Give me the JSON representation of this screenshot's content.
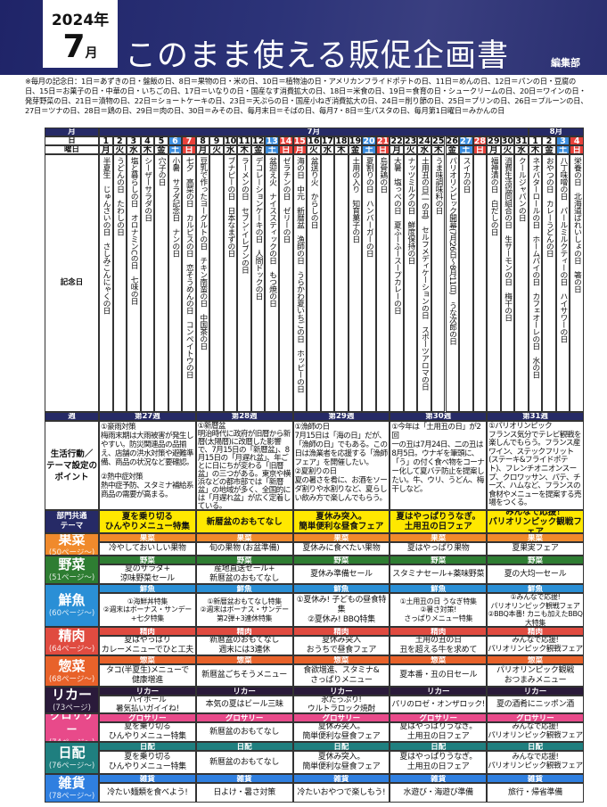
{
  "header": {
    "year": "2024年",
    "month": "7",
    "month_unit": "月",
    "title": "このまま使える販促企画書",
    "editor": "編集部"
  },
  "note": "※毎月の記念日：1日＝あずきの日・盤飯の日、8日＝果物の日・米の日、10日＝植物油の日・アメリカンフライドポテトの日、11日＝めんの日、12日＝パンの日・豆腐の日、15日＝お菓子の日・中華の日・いちごの日、17日＝いなりの日・国産なす消費拡大の日、18日＝米食の日、19日＝食育の日・シュークリームの日、20日＝ワインの日・発芽野菜の日、21日＝漬物の日、22日＝ショートケーキの日、23日＝天ぷらの日・国産小ねぎ消費拡大の日、24日＝削り節の日、25日＝プリンの日、26日＝プルーンの日、27日＝ツナの日、28日＝鶏の日、29日＝肉の日、30日＝みその日、毎月末日＝そばの日、毎月7・8日＝生パスタの日、毎月第1日曜日＝みかんの日",
  "labels": {
    "month": "月",
    "day": "日",
    "weekday": "曜日",
    "kinenbi": "記念日",
    "week": "週",
    "points": "生活行動／\nテーマ設定の\nポイント",
    "theme": "部門共通\nテーマ"
  },
  "months": [
    "7月",
    "8月"
  ],
  "colors": {
    "saturday": "#3d8fe0",
    "sunday": "#e8413a",
    "navy": "#262a66",
    "theme": "#ffe800"
  },
  "days": [
    {
      "d": "1",
      "w": "月",
      "k": "半夏生　じゅんさいの日　さしみこんにゃくの日"
    },
    {
      "d": "2",
      "w": "火",
      "k": "うどんの日　たわしの日"
    },
    {
      "d": "3",
      "w": "水",
      "k": "塩と暮らしの日　オロナミンCの日　七味の日"
    },
    {
      "d": "4",
      "w": "木",
      "k": "シーザーサラダの日"
    },
    {
      "d": "5",
      "w": "金",
      "k": "穴子の日"
    },
    {
      "d": "6",
      "w": "土",
      "t": "sat",
      "k": "小暑　サラダ記念日　ナンの日"
    },
    {
      "d": "7",
      "w": "日",
      "t": "sun",
      "k": "七夕　高菜の日　カルピスの日　恋そうめんの日　コンペイトウの日"
    },
    {
      "d": "8",
      "w": "月",
      "k": "豆乳で作ったヨーグルトの日　チキン南蛮の日　中国茶の日"
    },
    {
      "d": "9",
      "w": "火",
      "k": ""
    },
    {
      "d": "10",
      "w": "水",
      "k": "ブナピーの日　日本なまずの日"
    },
    {
      "d": "11",
      "w": "木",
      "k": "ラーメンの日　セブン-イレブンの日"
    },
    {
      "d": "12",
      "w": "金",
      "k": "デコレーションケーキの日　人間ドックの日"
    },
    {
      "d": "13",
      "w": "土",
      "t": "sat",
      "k": "盆迎え火　ナイススティックの日　もつ焼の日"
    },
    {
      "d": "14",
      "w": "日",
      "t": "sun",
      "k": "ゼラチンの日　ゼリーの日"
    },
    {
      "d": "15",
      "w": "月",
      "t": "sun",
      "k": "海の日　中元　新暦盆　漁師の日　うらかわ夏いちごの日　ホッピーの日"
    },
    {
      "d": "16",
      "w": "火",
      "k": "盆送り火　からしの日"
    },
    {
      "d": "17",
      "w": "水",
      "k": ""
    },
    {
      "d": "18",
      "w": "木",
      "k": ""
    },
    {
      "d": "19",
      "w": "金",
      "k": "土用の入り　知育菓子の日"
    },
    {
      "d": "20",
      "w": "土",
      "t": "sat",
      "k": "夏割りの日　ハンバーガーの日"
    },
    {
      "d": "21",
      "w": "日",
      "t": "sun",
      "k": "烏骨鶏の日"
    },
    {
      "d": "22",
      "w": "月",
      "k": "大暑　塩っぺの日　夏ふーふースープカレーの日"
    },
    {
      "d": "23",
      "w": "火",
      "k": "ナッツミルクの日　鮮度保持の日"
    },
    {
      "d": "24",
      "w": "水",
      "k": "土用丑の日(一の丑)　セルフメディケーションの日　スポーツアロマの日"
    },
    {
      "d": "25",
      "w": "木",
      "k": "うま味調味料の日"
    },
    {
      "d": "26",
      "w": "金",
      "k": "パリオリンピック開幕(7月26日～8月11日)　うな次郎の日"
    },
    {
      "d": "27",
      "w": "土",
      "t": "sat",
      "k": "スイカの日"
    },
    {
      "d": "28",
      "w": "日",
      "t": "sun",
      "k": ""
    },
    {
      "d": "29",
      "w": "月",
      "k": "福神漬の日　白だしの日"
    },
    {
      "d": "30",
      "w": "火",
      "k": "消費生活協同組合の日　生サーモンの日　梅干の日"
    },
    {
      "d": "31",
      "w": "水",
      "k": "クールジャパンの日"
    },
    {
      "d": "1",
      "w": "木",
      "k": "ネオバターロールの日　ホームパイの日　カフェオーレの日　水の日"
    },
    {
      "d": "2",
      "w": "金",
      "k": "おやつの日　カレーうどんの日"
    },
    {
      "d": "3",
      "w": "土",
      "t": "sat",
      "k": "八丁味噌の日　パールミルクティーの日　ハイサワーの日"
    },
    {
      "d": "4",
      "w": "日",
      "t": "sun",
      "k": "栄養の日　北海道ばれいしょの日　箸の日"
    }
  ],
  "weeks": [
    {
      "name": "第27週",
      "p": [
        "①豪雨対策",
        "梅雨末期は大雨被害が発生しやすい。防災関連品の品揃え、店舗の洪水対策や避難準備、商品の状況など要確認。",
        "",
        "②熱中症対策",
        "熱中症予防、スタミナ補給系商品の需要が高まる。"
      ],
      "theme": "夏を乗り切る\nひんやりメニュー特集"
    },
    {
      "name": "第28週",
      "p": [
        "①新暦盆",
        "明治時代に政府が旧暦から新暦(太陽暦)に改暦した影響で、7月15日の「新暦盆」、8月15日の「月遅れ盆」、年ごとに日にちが変わる「旧暦盆」の三つがある。東京や横浜などの都市部では「新暦盆」の地域が多く、全国的には「月遅れ盆」が広く定着している。"
      ],
      "theme": "新暦盆のおもてなし"
    },
    {
      "name": "第29週",
      "p": [
        "①漁師の日",
        "7月15日は「海の日」だが、「漁師の日」でもある。この日は漁業者を応援する「漁師フェア」を開催したい。",
        "②夏割りの日",
        "夏の暑さを肴に、お酒をソーダ割りや水割りなど、夏らしい飲み方で楽しんでもらう。"
      ],
      "theme": "夏休み突入。\n簡単便利な昼食フェア"
    },
    {
      "name": "第30週",
      "p": [
        "①今年は「土用丑の日」が2回",
        "一の丑は7月24日、二の丑は8月5日。ウナギを筆頭に、「う」の付く食べ物をコーナー化して夏バテ防止を提案したい。牛、ウリ、うどん、梅干しなど。"
      ],
      "theme": "夏はやっぱりうなぎ。\n土用丑の日フェア"
    },
    {
      "name": "第31週",
      "p": [
        "①パリオリンピック",
        "フランス気分でテレビ観戦を楽しんでもらう。フランス産ワイン、ステックフリット(ステーキ&フライドポテト)、フレンチオニオンスープ、クロワッサン、パテ、チーズ、ハムなど、フランスの食材やメニューを提案する売場をつくる。"
      ],
      "theme": "みんなで応援！\nパリオリンピック観戦フェア"
    }
  ],
  "departments": [
    {
      "name": "果菜",
      "page": "(50ページ～)",
      "color": "#f08a2c",
      "items": [
        "冷やしておいしい果物",
        "旬の果物 (お盆準備)",
        "夏休みに食べたい果物",
        "夏はやっぱり果物",
        "夏果実フェア"
      ]
    },
    {
      "name": "野菜",
      "page": "(51ページ～)",
      "color": "#2e7d32",
      "items": [
        "夏のサラダ+\n涼味野菜セール",
        "産地直送セール+\n新暦盆のおもてなし",
        "夏休み準備セール",
        "スタミナセール+薬味野菜",
        "夏の大均一セール"
      ]
    },
    {
      "name": "鮮魚",
      "page": "(60ページ～)",
      "color": "#2a8fd6",
      "items": [
        "①海鮮丼特集\n②週末はボーナス・サンデー\n+七夕特集",
        "①新暦盆おもてなし特集\n②週末はボーナス・サンデー\n第2弾+3連休特集",
        "①夏休み! 子どもの昼食特集\n②夏休み! BBQ特集",
        "①土用丑の日 うなぎ特集\n②暑さ対策!\nさっぱりメニュー特集",
        "①みんなで応援!\nパリオリンピック観戦フェア\n②BBQ本番! カニも加えたBBQ大特集"
      ]
    },
    {
      "name": "精肉",
      "page": "(64ページ～)",
      "color": "#e04b40",
      "items": [
        "夏はやっぱり\nカレーメニューでひと工夫",
        "新暦盆のおもてなし\n週末には3連休",
        "夏休み突入\nおうちで昼食フェア",
        "土用の丑の日\n丑を超える牛を求めて",
        "みんなで応援!\nパリオリンピック観戦フェア"
      ]
    },
    {
      "name": "惣菜",
      "page": "(68ページ～)",
      "color": "#e8622a",
      "items": [
        "タコ(半夏生)メニューで\n健康増進",
        "新暦盆ごちそうメニュー",
        "食欲増進、スタミナ&\nさっぱりメニュー",
        "夏本番・丑の日セール",
        "パリオリンピック観戦\nおつまみメニュー"
      ]
    },
    {
      "name": "リカー",
      "page": "(73ページ)",
      "color": "#2a1a3a",
      "items": [
        "ハイボール\n暑気払いガイイね!",
        "本気の夏はビール三昧",
        "氷たっぷり!\nウルトラロック焼酎",
        "パリのロゼ・オンザロック!",
        "夏の酒肴にニッポン酒"
      ]
    },
    {
      "name": "グロサリー",
      "page": "(74ページ～)",
      "color": "#e84a8a",
      "items": [
        "夏を乗り切る\nひんやりメニュー特集",
        "新暦盆のおもてなし",
        "夏休み突入。\n簡単便利な昼食フェア",
        "夏はやっぱりうなぎ。\n土用丑の日フェア",
        "みんなで応援!\nパリオリンピック観戦フェア"
      ]
    },
    {
      "name": "日配",
      "page": "(76ページ～)",
      "color": "#1f7f7f",
      "items": [
        "夏を乗り切る\nひんやりメニュー特集",
        "新暦盆のおもてなし",
        "夏休み突入。\n簡単便利な昼食フェア",
        "夏はやっぱりうなぎ。\n土用丑の日フェア",
        "みんなで応援!\nパリオリンピック観戦フェア"
      ]
    },
    {
      "name": "雑貨",
      "page": "(78ページ～)",
      "color": "#2f7fe0",
      "items": [
        "冷たい麺類を食べよう!",
        "日よけ・暑さ対策",
        "冷たいおやつで楽しもう!",
        "水遊び・海遊び準備",
        "旅行・帰省準備"
      ]
    }
  ]
}
